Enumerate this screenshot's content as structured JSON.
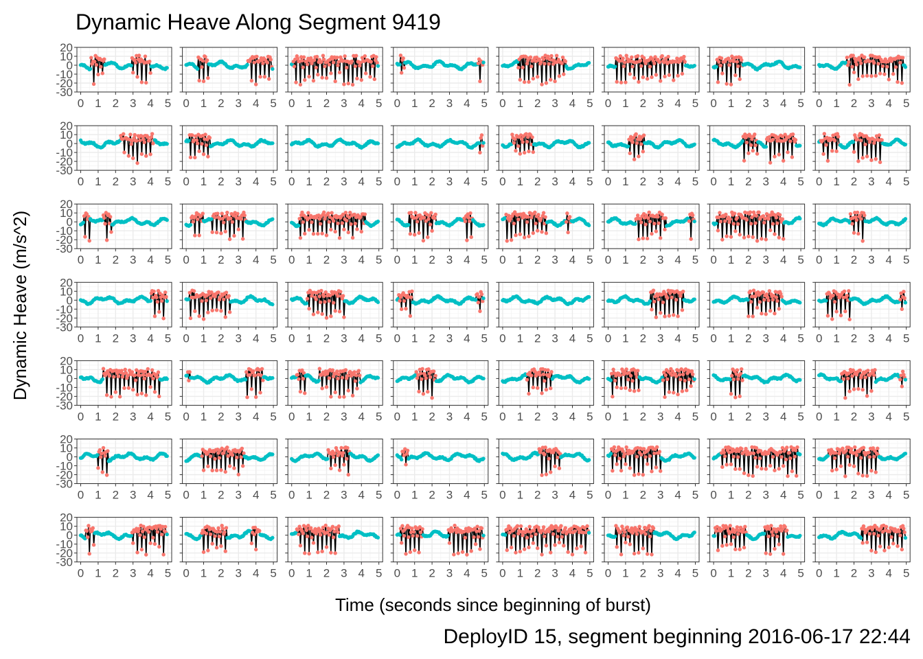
{
  "chart_data": {
    "type": "scatter",
    "title": "Dynamic Heave Along Segment 9419",
    "caption": "DeployID 15, segment beginning 2016-06-17 22:44",
    "xlabel": "Time (seconds since beginning of burst)",
    "ylabel": "Dynamic Heave (m/s^2)",
    "layout": {
      "rows": 7,
      "cols": 8
    },
    "xlim": [
      0,
      5
    ],
    "ylim": [
      -30,
      20
    ],
    "x_ticks": [
      "0",
      "1",
      "2",
      "3",
      "4",
      "5"
    ],
    "y_ticks": [
      "20",
      "10",
      "0",
      "-10",
      "-20",
      "-30"
    ],
    "grid": true,
    "legend": "none",
    "colors": {
      "series_a": "#f8766d",
      "series_b": "#00bfc4",
      "series_na": "#7f7f7f",
      "segments": "#000000"
    },
    "panels": [
      {
        "panel": 1,
        "high_activity_intervals": [
          [
            0.6,
            1.4
          ],
          [
            2.9,
            4.0
          ]
        ]
      },
      {
        "panel": 2,
        "high_activity_intervals": [
          [
            0.7,
            1.3
          ],
          [
            3.5,
            4.9
          ]
        ]
      },
      {
        "panel": 3,
        "high_activity_intervals": [
          [
            0.1,
            4.9
          ]
        ]
      },
      {
        "panel": 4,
        "high_activity_intervals": [
          [
            0.2,
            0.4
          ],
          [
            4.6,
            4.9
          ]
        ]
      },
      {
        "panel": 5,
        "high_activity_intervals": [
          [
            0.9,
            3.6
          ]
        ]
      },
      {
        "panel": 6,
        "high_activity_intervals": [
          [
            0.4,
            4.4
          ]
        ]
      },
      {
        "panel": 7,
        "high_activity_intervals": [
          [
            0.2,
            1.7
          ]
        ]
      },
      {
        "panel": 8,
        "high_activity_intervals": [
          [
            1.6,
            4.8
          ]
        ]
      },
      {
        "panel": 9,
        "high_activity_intervals": [
          [
            2.3,
            4.2
          ]
        ]
      },
      {
        "panel": 10,
        "high_activity_intervals": [
          [
            0.2,
            1.4
          ]
        ]
      },
      {
        "panel": 11,
        "high_activity_intervals": []
      },
      {
        "panel": 12,
        "high_activity_intervals": [
          [
            4.7,
            4.9
          ]
        ]
      },
      {
        "panel": 13,
        "high_activity_intervals": [
          [
            0.5,
            1.8
          ]
        ]
      },
      {
        "panel": 14,
        "high_activity_intervals": [
          [
            1.2,
            2.1
          ]
        ]
      },
      {
        "panel": 15,
        "high_activity_intervals": [
          [
            1.7,
            2.5
          ],
          [
            3.0,
            4.7
          ]
        ]
      },
      {
        "panel": 16,
        "high_activity_intervals": [
          [
            0.1,
            1.2
          ],
          [
            2.0,
            3.6
          ]
        ]
      },
      {
        "panel": 17,
        "high_activity_intervals": [
          [
            0.2,
            0.5
          ],
          [
            1.3,
            1.8
          ]
        ]
      },
      {
        "panel": 18,
        "high_activity_intervals": [
          [
            0.3,
            1.0
          ],
          [
            1.5,
            3.4
          ]
        ]
      },
      {
        "panel": 19,
        "high_activity_intervals": [
          [
            0.4,
            4.2
          ]
        ]
      },
      {
        "panel": 20,
        "high_activity_intervals": [
          [
            0.7,
            2.2
          ],
          [
            3.8,
            4.3
          ]
        ]
      },
      {
        "panel": 21,
        "high_activity_intervals": [
          [
            0.2,
            2.5
          ],
          [
            3.6,
            3.9
          ]
        ]
      },
      {
        "panel": 22,
        "high_activity_intervals": [
          [
            1.6,
            3.3
          ],
          [
            4.6,
            4.9
          ]
        ]
      },
      {
        "panel": 23,
        "high_activity_intervals": [
          [
            0.2,
            4.0
          ]
        ]
      },
      {
        "panel": 24,
        "high_activity_intervals": [
          [
            1.8,
            2.6
          ]
        ]
      },
      {
        "panel": 25,
        "high_activity_intervals": [
          [
            4.0,
            4.9
          ]
        ]
      },
      {
        "panel": 26,
        "high_activity_intervals": [
          [
            0.2,
            2.5
          ]
        ]
      },
      {
        "panel": 27,
        "high_activity_intervals": [
          [
            0.9,
            3.0
          ]
        ]
      },
      {
        "panel": 28,
        "high_activity_intervals": [
          [
            0.1,
            0.9
          ],
          [
            4.5,
            4.9
          ]
        ]
      },
      {
        "panel": 29,
        "high_activity_intervals": []
      },
      {
        "panel": 30,
        "high_activity_intervals": [
          [
            2.4,
            4.3
          ]
        ]
      },
      {
        "panel": 31,
        "high_activity_intervals": [
          [
            2.0,
            3.9
          ]
        ]
      },
      {
        "panel": 32,
        "high_activity_intervals": [
          [
            0.4,
            1.8
          ],
          [
            4.6,
            4.9
          ]
        ]
      },
      {
        "panel": 33,
        "high_activity_intervals": [
          [
            1.3,
            4.5
          ]
        ]
      },
      {
        "panel": 34,
        "high_activity_intervals": [
          [
            0.1,
            0.2
          ],
          [
            3.4,
            4.4
          ]
        ]
      },
      {
        "panel": 35,
        "high_activity_intervals": [
          [
            0.3,
            0.8
          ],
          [
            1.6,
            3.9
          ]
        ]
      },
      {
        "panel": 36,
        "high_activity_intervals": [
          [
            1.1,
            2.2
          ]
        ]
      },
      {
        "panel": 37,
        "high_activity_intervals": [
          [
            1.4,
            2.8
          ]
        ]
      },
      {
        "panel": 38,
        "high_activity_intervals": [
          [
            0.2,
            1.8
          ],
          [
            3.1,
            4.9
          ]
        ]
      },
      {
        "panel": 39,
        "high_activity_intervals": [
          [
            1.0,
            1.7
          ]
        ]
      },
      {
        "panel": 40,
        "high_activity_intervals": [
          [
            1.3,
            3.2
          ],
          [
            4.6,
            4.9
          ]
        ]
      },
      {
        "panel": 41,
        "high_activity_intervals": [
          [
            1.0,
            1.6
          ]
        ]
      },
      {
        "panel": 42,
        "high_activity_intervals": [
          [
            0.9,
            3.3
          ]
        ]
      },
      {
        "panel": 43,
        "high_activity_intervals": [
          [
            2.1,
            3.3
          ]
        ]
      },
      {
        "panel": 44,
        "high_activity_intervals": [
          [
            0.3,
            0.6
          ]
        ]
      },
      {
        "panel": 45,
        "high_activity_intervals": [
          [
            2.1,
            3.3
          ]
        ]
      },
      {
        "panel": 46,
        "high_activity_intervals": [
          [
            0.2,
            3.0
          ]
        ]
      },
      {
        "panel": 47,
        "high_activity_intervals": [
          [
            0.4,
            4.8
          ]
        ]
      },
      {
        "panel": 48,
        "high_activity_intervals": [
          [
            0.5,
            3.4
          ]
        ]
      },
      {
        "panel": 49,
        "high_activity_intervals": [
          [
            0.3,
            0.8
          ],
          [
            2.9,
            4.9
          ]
        ]
      },
      {
        "panel": 50,
        "high_activity_intervals": [
          [
            0.9,
            2.3
          ],
          [
            3.7,
            4.2
          ]
        ]
      },
      {
        "panel": 51,
        "high_activity_intervals": [
          [
            0.3,
            2.7
          ]
        ]
      },
      {
        "panel": 52,
        "high_activity_intervals": [
          [
            0.2,
            1.5
          ],
          [
            2.9,
            4.9
          ]
        ]
      },
      {
        "panel": 53,
        "high_activity_intervals": [
          [
            0.2,
            4.9
          ]
        ]
      },
      {
        "panel": 54,
        "high_activity_intervals": [
          [
            0.4,
            2.6
          ]
        ]
      },
      {
        "panel": 55,
        "high_activity_intervals": [
          [
            0.1,
            1.9
          ],
          [
            2.9,
            4.2
          ]
        ]
      },
      {
        "panel": 56,
        "high_activity_intervals": [
          [
            2.4,
            4.9
          ]
        ]
      }
    ]
  }
}
